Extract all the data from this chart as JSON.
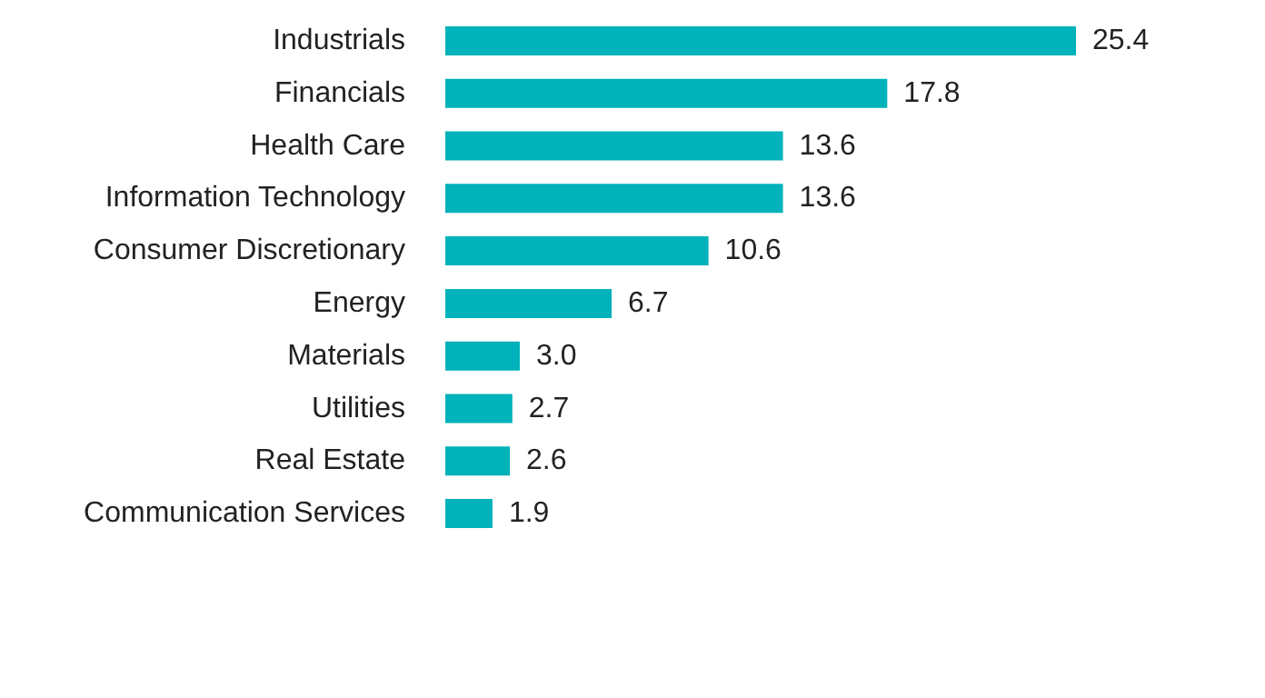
{
  "chart_data": {
    "type": "bar",
    "orientation": "horizontal",
    "categories": [
      "Industrials",
      "Financials",
      "Health Care",
      "Information Technology",
      "Consumer Discretionary",
      "Energy",
      "Materials",
      "Utilities",
      "Real Estate",
      "Communication Services"
    ],
    "values": [
      25.4,
      17.8,
      13.6,
      13.6,
      10.6,
      6.7,
      3.0,
      2.7,
      2.6,
      1.9
    ],
    "value_labels": [
      "25.4",
      "17.8",
      "13.6",
      "13.6",
      "10.6",
      "6.7",
      "3.0",
      "2.7",
      "2.6",
      "1.9"
    ],
    "color": "#00b2b9"
  }
}
